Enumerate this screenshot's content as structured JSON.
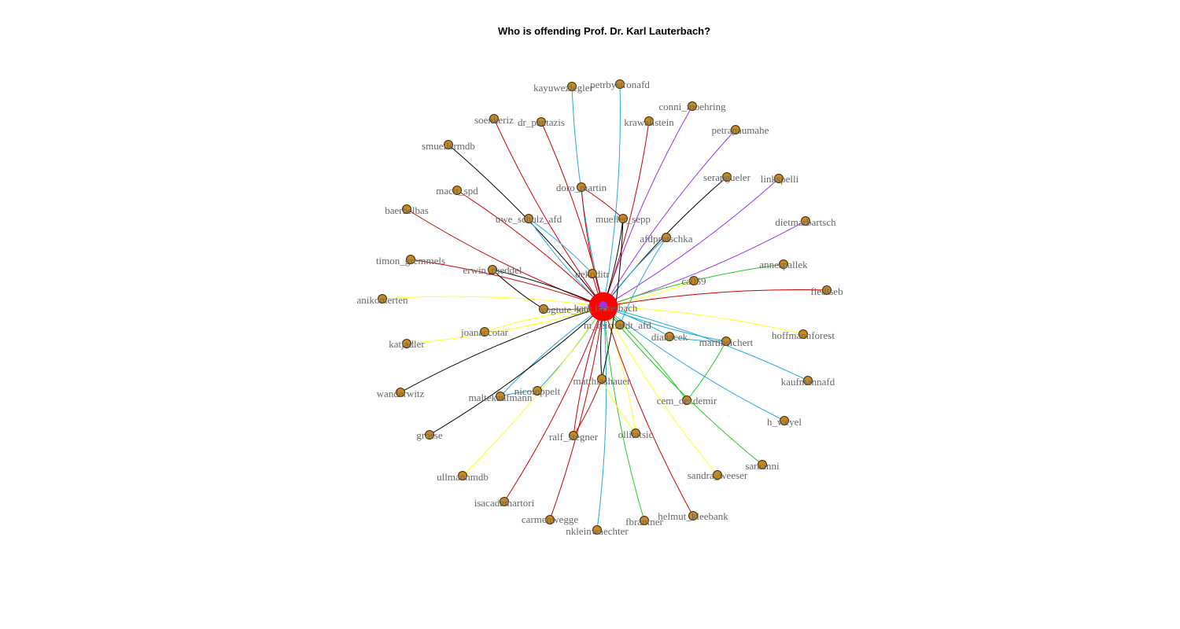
{
  "title": "Who is offending Prof. Dr. Karl Lauterbach?",
  "colors": {
    "node_fill": "#c8891e",
    "node_stroke": "#3a2a10",
    "label": "#666666",
    "arrow_head": "#ff0000",
    "edge_palette": [
      "#000000",
      "#cc0000",
      "#22aadd",
      "#9933ee",
      "#ffff22",
      "#22cc22"
    ]
  },
  "hub": "karl_lauterbach",
  "nodes": [
    {
      "id": "karl_lauterbach",
      "label": "karl_lauterbach"
    },
    {
      "id": "kayuweziegler",
      "label": "kayuweziegler"
    },
    {
      "id": "petrbystronafd",
      "label": "petrbystronafd"
    },
    {
      "id": "conni_moehring",
      "label": "conni_moehring"
    },
    {
      "id": "krawallstein",
      "label": "krawallstein"
    },
    {
      "id": "soenkeriz",
      "label": "soenkeriz"
    },
    {
      "id": "dr_pantazis",
      "label": "dr_pantazis"
    },
    {
      "id": "petrapaumahe",
      "label": "petrapaumahe"
    },
    {
      "id": "smuellermdb",
      "label": "smuellermdb"
    },
    {
      "id": "serapgueler",
      "label": "serapgueler"
    },
    {
      "id": "linkspelli",
      "label": "linkspelli"
    },
    {
      "id": "doro_martin",
      "label": "doro_martin"
    },
    {
      "id": "macit_spd",
      "label": "macit_spd"
    },
    {
      "id": "uwe_schulz_afd",
      "label": "uwe_schulz_afd"
    },
    {
      "id": "mueller_sepp",
      "label": "mueller_sepp"
    },
    {
      "id": "baerbelbas",
      "label": "baerbelbas"
    },
    {
      "id": "dietmarbartsch",
      "label": "dietmarbartsch"
    },
    {
      "id": "afdprotschka",
      "label": "afdprotschka"
    },
    {
      "id": "timon_gremmels",
      "label": "timon_gremmels"
    },
    {
      "id": "annespallek",
      "label": "annespallek"
    },
    {
      "id": "erwin_rueddel",
      "label": "erwin_rueddel"
    },
    {
      "id": "dekoditr",
      "label": "dekoditr"
    },
    {
      "id": "ca059",
      "label": "ca059"
    },
    {
      "id": "fiedlseb",
      "label": "fiedlseb"
    },
    {
      "id": "anikomerten",
      "label": "anikomerten"
    },
    {
      "id": "vogtute_karl",
      "label": "vogtute_karl"
    },
    {
      "id": "m_reichardt_afd",
      "label": "m_reichardt_afd"
    },
    {
      "id": "hoffmannforest",
      "label": "hoffmannforest"
    },
    {
      "id": "joanaccotar",
      "label": "joanaccotar"
    },
    {
      "id": "dianacek",
      "label": "dianacek"
    },
    {
      "id": "martinsichert",
      "label": "martinsichert"
    },
    {
      "id": "katjadler",
      "label": "katjadler"
    },
    {
      "id": "matthiashauer",
      "label": "matthiashauer"
    },
    {
      "id": "kaufmannafd",
      "label": "kaufmannafd"
    },
    {
      "id": "wanderwitz",
      "label": "wanderwitz"
    },
    {
      "id": "nicoloppelt",
      "label": "nicoloppelt"
    },
    {
      "id": "maltekaufmann",
      "label": "maltekaufmann"
    },
    {
      "id": "cem_oezdemir",
      "label": "cem_oezdemir"
    },
    {
      "id": "h_weyel",
      "label": "h_weyel"
    },
    {
      "id": "grosse",
      "label": "grosse"
    },
    {
      "id": "ralf_stegner",
      "label": "ralf_stegner"
    },
    {
      "id": "ollitatsic",
      "label": "ollitatsic"
    },
    {
      "id": "saraanni",
      "label": "saraanni"
    },
    {
      "id": "ullmannmdb",
      "label": "ullmannmdb"
    },
    {
      "id": "sandra_weeser",
      "label": "sandra_weeser"
    },
    {
      "id": "isacadamartori",
      "label": "isacadamartori"
    },
    {
      "id": "helmut_kleebank",
      "label": "helmut_kleebank"
    },
    {
      "id": "carmenwegge",
      "label": "carmenwegge"
    },
    {
      "id": "fbrantner",
      "label": "fbrantner"
    },
    {
      "id": "nkleinwaechter",
      "label": "nkleinwaechter"
    }
  ],
  "edges": [
    {
      "from": "kayuweziegler",
      "to": "karl_lauterbach",
      "color": "#22aadd"
    },
    {
      "from": "petrbystronafd",
      "to": "karl_lauterbach",
      "color": "#22aadd"
    },
    {
      "from": "conni_moehring",
      "to": "karl_lauterbach",
      "color": "#9933ee"
    },
    {
      "from": "krawallstein",
      "to": "karl_lauterbach",
      "color": "#cc0000"
    },
    {
      "from": "soenkeriz",
      "to": "karl_lauterbach",
      "color": "#cc0000"
    },
    {
      "from": "dr_pantazis",
      "to": "karl_lauterbach",
      "color": "#cc0000"
    },
    {
      "from": "petrapaumahe",
      "to": "karl_lauterbach",
      "color": "#9933ee"
    },
    {
      "from": "smuellermdb",
      "to": "karl_lauterbach",
      "color": "#000000"
    },
    {
      "from": "serapgueler",
      "to": "karl_lauterbach",
      "color": "#000000"
    },
    {
      "from": "linkspelli",
      "to": "karl_lauterbach",
      "color": "#9933ee"
    },
    {
      "from": "doro_martin",
      "to": "karl_lauterbach",
      "color": "#cc0000"
    },
    {
      "from": "macit_spd",
      "to": "karl_lauterbach",
      "color": "#cc0000"
    },
    {
      "from": "uwe_schulz_afd",
      "to": "karl_lauterbach",
      "color": "#22aadd"
    },
    {
      "from": "mueller_sepp",
      "to": "karl_lauterbach",
      "color": "#000000"
    },
    {
      "from": "baerbelbas",
      "to": "karl_lauterbach",
      "color": "#cc0000"
    },
    {
      "from": "dietmarbartsch",
      "to": "karl_lauterbach",
      "color": "#9933ee"
    },
    {
      "from": "afdprotschka",
      "to": "karl_lauterbach",
      "color": "#22aadd"
    },
    {
      "from": "timon_gremmels",
      "to": "karl_lauterbach",
      "color": "#cc0000"
    },
    {
      "from": "annespallek",
      "to": "karl_lauterbach",
      "color": "#22cc22"
    },
    {
      "from": "erwin_rueddel",
      "to": "karl_lauterbach",
      "color": "#000000"
    },
    {
      "from": "dekoditr",
      "to": "karl_lauterbach",
      "color": "#cc0000"
    },
    {
      "from": "ca059",
      "to": "karl_lauterbach",
      "color": "#ffff22"
    },
    {
      "from": "fiedlseb",
      "to": "karl_lauterbach",
      "color": "#cc0000"
    },
    {
      "from": "anikomerten",
      "to": "karl_lauterbach",
      "color": "#ffff22"
    },
    {
      "from": "vogtute_karl",
      "to": "karl_lauterbach",
      "color": "#9933ee"
    },
    {
      "from": "m_reichardt_afd",
      "to": "karl_lauterbach",
      "color": "#22aadd"
    },
    {
      "from": "hoffmannforest",
      "to": "karl_lauterbach",
      "color": "#ffff22"
    },
    {
      "from": "joanaccotar",
      "to": "karl_lauterbach",
      "color": "#ffff22"
    },
    {
      "from": "dianacek",
      "to": "karl_lauterbach",
      "color": "#22aadd"
    },
    {
      "from": "martinsichert",
      "to": "karl_lauterbach",
      "color": "#22aadd"
    },
    {
      "from": "katjadler",
      "to": "karl_lauterbach",
      "color": "#ffff22"
    },
    {
      "from": "matthiashauer",
      "to": "karl_lauterbach",
      "color": "#000000"
    },
    {
      "from": "kaufmannafd",
      "to": "karl_lauterbach",
      "color": "#22aadd"
    },
    {
      "from": "wanderwitz",
      "to": "karl_lauterbach",
      "color": "#000000"
    },
    {
      "from": "nicoloppelt",
      "to": "karl_lauterbach",
      "color": "#22aadd"
    },
    {
      "from": "maltekaufmann",
      "to": "karl_lauterbach",
      "color": "#22aadd"
    },
    {
      "from": "cem_oezdemir",
      "to": "karl_lauterbach",
      "color": "#22cc22"
    },
    {
      "from": "h_weyel",
      "to": "karl_lauterbach",
      "color": "#22aadd"
    },
    {
      "from": "grosse",
      "to": "karl_lauterbach",
      "color": "#000000"
    },
    {
      "from": "ralf_stegner",
      "to": "karl_lauterbach",
      "color": "#cc0000"
    },
    {
      "from": "ollitatsic",
      "to": "karl_lauterbach",
      "color": "#ffff22"
    },
    {
      "from": "saraanni",
      "to": "karl_lauterbach",
      "color": "#22cc22"
    },
    {
      "from": "ullmannmdb",
      "to": "karl_lauterbach",
      "color": "#ffff22"
    },
    {
      "from": "sandra_weeser",
      "to": "karl_lauterbach",
      "color": "#ffff22"
    },
    {
      "from": "isacadamartori",
      "to": "karl_lauterbach",
      "color": "#cc0000"
    },
    {
      "from": "helmut_kleebank",
      "to": "karl_lauterbach",
      "color": "#cc0000"
    },
    {
      "from": "carmenwegge",
      "to": "karl_lauterbach",
      "color": "#cc0000"
    },
    {
      "from": "fbrantner",
      "to": "karl_lauterbach",
      "color": "#22cc22"
    },
    {
      "from": "nkleinwaechter",
      "to": "karl_lauterbach",
      "color": "#22aadd"
    },
    {
      "from": "uwe_schulz_afd",
      "to": "dekoditr",
      "color": "#22aadd"
    },
    {
      "from": "erwin_rueddel",
      "to": "vogtute_karl",
      "color": "#000000"
    },
    {
      "from": "maltekaufmann",
      "to": "nicoloppelt",
      "color": "#22aadd"
    },
    {
      "from": "dianacek",
      "to": "martinsichert",
      "color": "#22aadd"
    },
    {
      "from": "mueller_sepp",
      "to": "matthiashauer",
      "color": "#000000"
    },
    {
      "from": "ralf_stegner",
      "to": "matthiashauer",
      "color": "#cc0000"
    },
    {
      "from": "doro_martin",
      "to": "mueller_sepp",
      "color": "#cc0000"
    },
    {
      "from": "afdprotschka",
      "to": "m_reichardt_afd",
      "color": "#22aadd"
    },
    {
      "from": "ollitatsic",
      "to": "matthiashauer",
      "color": "#ffff22"
    },
    {
      "from": "cem_oezdemir",
      "to": "martinsichert",
      "color": "#22cc22"
    }
  ]
}
